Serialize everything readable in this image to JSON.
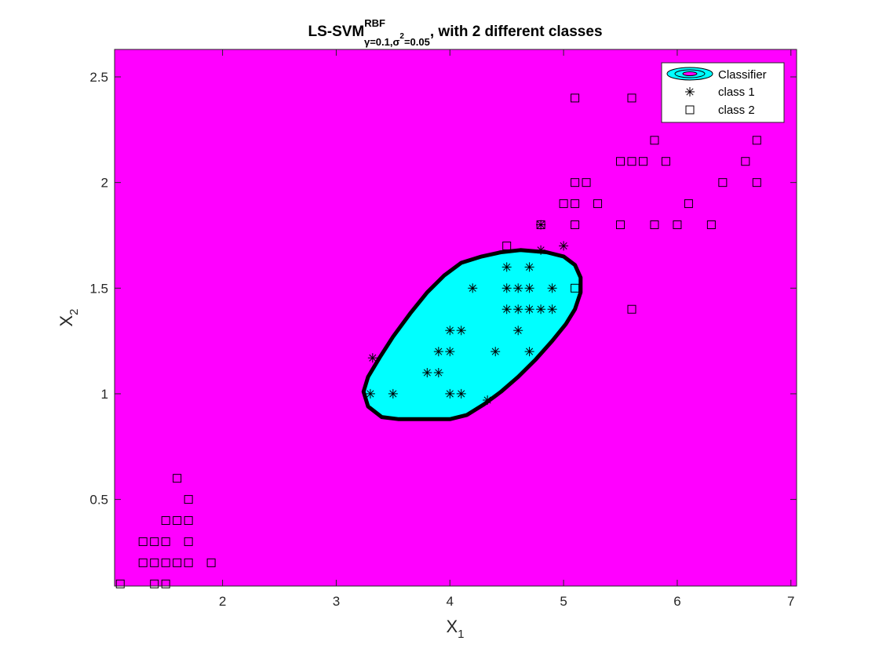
{
  "chart_data": {
    "type": "scatter",
    "title": {
      "main": "LS-SVM",
      "sup": "RBF",
      "sub_gamma": "γ=0.1,",
      "sub_sigma": "σ",
      "sub_sigma_sup": "2",
      "sub_rest": "=0.05",
      "suffix": ", with 2 different classes"
    },
    "xlabel": {
      "base": "X",
      "sub": "1"
    },
    "ylabel": {
      "base": "X",
      "sub": "2"
    },
    "xlim": [
      1.05,
      7.05
    ],
    "ylim": [
      0.09,
      2.63
    ],
    "xticks": [
      2,
      3,
      4,
      5,
      6,
      7
    ],
    "yticks": [
      0.5,
      1,
      1.5,
      2,
      2.5
    ],
    "colors": {
      "background_region": "#ff00ff",
      "classifier_region": "#00ffff",
      "boundary": "#000000",
      "marker": "#000000"
    },
    "legend": {
      "position": "top-right",
      "entries": [
        "Classifier",
        "class 1",
        "class 2"
      ]
    },
    "boundary": [
      [
        3.4,
        0.89
      ],
      [
        3.55,
        0.88
      ],
      [
        3.85,
        0.88
      ],
      [
        4.0,
        0.88
      ],
      [
        4.15,
        0.9
      ],
      [
        4.3,
        0.95
      ],
      [
        4.45,
        1.01
      ],
      [
        4.6,
        1.08
      ],
      [
        4.75,
        1.16
      ],
      [
        4.9,
        1.25
      ],
      [
        5.02,
        1.33
      ],
      [
        5.1,
        1.4
      ],
      [
        5.15,
        1.48
      ],
      [
        5.15,
        1.55
      ],
      [
        5.1,
        1.61
      ],
      [
        5.0,
        1.65
      ],
      [
        4.85,
        1.67
      ],
      [
        4.62,
        1.68
      ],
      [
        4.45,
        1.67
      ],
      [
        4.28,
        1.65
      ],
      [
        4.1,
        1.62
      ],
      [
        3.95,
        1.56
      ],
      [
        3.8,
        1.48
      ],
      [
        3.65,
        1.38
      ],
      [
        3.5,
        1.27
      ],
      [
        3.38,
        1.17
      ],
      [
        3.28,
        1.08
      ],
      [
        3.24,
        1.01
      ],
      [
        3.28,
        0.94
      ]
    ],
    "series": [
      {
        "name": "class 1",
        "marker": "asterisk",
        "points": [
          [
            3.3,
            1.0
          ],
          [
            3.5,
            1.0
          ],
          [
            3.8,
            1.1
          ],
          [
            3.9,
            1.1
          ],
          [
            3.9,
            1.2
          ],
          [
            4.0,
            1.2
          ],
          [
            4.0,
            1.3
          ],
          [
            4.1,
            1.3
          ],
          [
            4.0,
            1.0
          ],
          [
            4.1,
            1.0
          ],
          [
            4.2,
            1.5
          ],
          [
            4.4,
            1.2
          ],
          [
            4.5,
            1.4
          ],
          [
            4.5,
            1.5
          ],
          [
            4.5,
            1.6
          ],
          [
            4.6,
            1.3
          ],
          [
            4.6,
            1.4
          ],
          [
            4.6,
            1.5
          ],
          [
            4.7,
            1.2
          ],
          [
            4.7,
            1.4
          ],
          [
            4.7,
            1.5
          ],
          [
            4.7,
            1.6
          ],
          [
            4.8,
            1.4
          ],
          [
            4.8,
            1.8
          ],
          [
            4.9,
            1.4
          ],
          [
            4.9,
            1.5
          ],
          [
            5.0,
            1.7
          ],
          [
            3.32,
            1.17
          ],
          [
            4.33,
            0.97
          ],
          [
            4.8,
            1.68
          ]
        ]
      },
      {
        "name": "class 2",
        "marker": "square",
        "points": [
          [
            1.1,
            0.1
          ],
          [
            1.3,
            0.2
          ],
          [
            1.3,
            0.3
          ],
          [
            1.4,
            0.1
          ],
          [
            1.4,
            0.2
          ],
          [
            1.4,
            0.3
          ],
          [
            1.5,
            0.1
          ],
          [
            1.5,
            0.2
          ],
          [
            1.5,
            0.3
          ],
          [
            1.5,
            0.4
          ],
          [
            1.6,
            0.2
          ],
          [
            1.6,
            0.4
          ],
          [
            1.6,
            0.6
          ],
          [
            1.7,
            0.2
          ],
          [
            1.7,
            0.3
          ],
          [
            1.7,
            0.4
          ],
          [
            1.7,
            0.5
          ],
          [
            1.9,
            0.2
          ],
          [
            4.5,
            1.7
          ],
          [
            4.8,
            1.8
          ],
          [
            5.0,
            1.9
          ],
          [
            5.1,
            1.5
          ],
          [
            5.1,
            1.8
          ],
          [
            5.1,
            1.9
          ],
          [
            5.1,
            2.0
          ],
          [
            5.1,
            2.4
          ],
          [
            5.2,
            2.0
          ],
          [
            5.3,
            1.9
          ],
          [
            5.5,
            1.8
          ],
          [
            5.5,
            2.1
          ],
          [
            5.6,
            1.4
          ],
          [
            5.6,
            2.1
          ],
          [
            5.6,
            2.4
          ],
          [
            5.7,
            2.1
          ],
          [
            5.8,
            1.8
          ],
          [
            5.8,
            2.2
          ],
          [
            5.9,
            2.1
          ],
          [
            6.0,
            1.8
          ],
          [
            6.1,
            1.9
          ],
          [
            6.3,
            1.8
          ],
          [
            6.4,
            2.0
          ],
          [
            6.6,
            2.1
          ],
          [
            6.7,
            2.0
          ],
          [
            6.7,
            2.2
          ]
        ]
      }
    ]
  }
}
